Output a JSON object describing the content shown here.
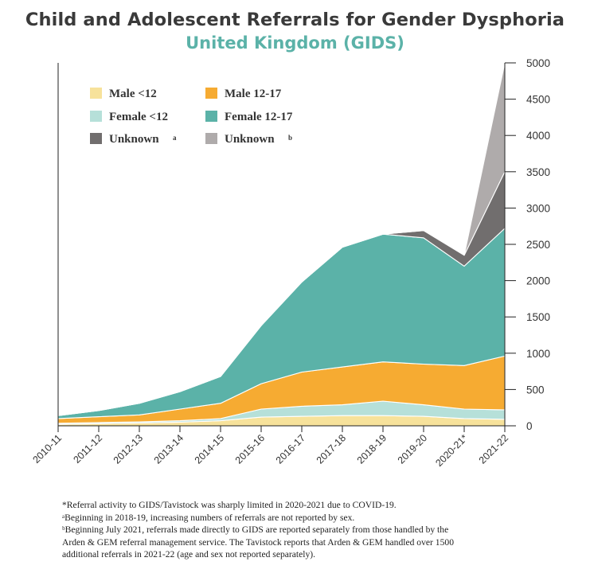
{
  "title": "Child and Adolescent Referrals for Gender Dysphoria",
  "subtitle": "United Kingdom (GIDS)",
  "chart_data": {
    "type": "area",
    "stacked": true,
    "categories": [
      "2010-11",
      "2011-12",
      "2012-13",
      "2013-14",
      "2014-15",
      "2015-16",
      "2016-17",
      "2017-18",
      "2018-19",
      "2019-20",
      "2020-21*",
      "2021-22"
    ],
    "y_axis_position": "right",
    "ylim": [
      0,
      5000
    ],
    "yticks": [
      0,
      500,
      1000,
      1500,
      2000,
      2500,
      3000,
      3500,
      4000,
      4500,
      5000
    ],
    "grid": false,
    "legend_position": "top-left",
    "series": [
      {
        "name": "Male <12",
        "color": "#f7e29b",
        "values": [
          20,
          30,
          40,
          50,
          70,
          120,
          130,
          140,
          140,
          130,
          100,
          90
        ]
      },
      {
        "name": "Female <12",
        "color": "#b6e0d9",
        "values": [
          15,
          15,
          15,
          20,
          30,
          110,
          140,
          150,
          200,
          160,
          130,
          130
        ]
      },
      {
        "name": "Male 12-17",
        "color": "#f6ab32",
        "values": [
          65,
          80,
          95,
          160,
          210,
          350,
          470,
          520,
          540,
          560,
          600,
          740
        ]
      },
      {
        "name": "Female 12-17",
        "color": "#5bb2a8",
        "values": [
          40,
          85,
          160,
          240,
          370,
          800,
          1240,
          1650,
          1760,
          1740,
          1370,
          1760
        ]
      },
      {
        "name": "Unknown",
        "marker": "a",
        "color": "#716e6e",
        "values": [
          0,
          0,
          0,
          0,
          0,
          0,
          0,
          0,
          0,
          100,
          150,
          780
        ]
      },
      {
        "name": "Unknown",
        "marker": "b",
        "color": "#afabab",
        "values": [
          0,
          0,
          0,
          0,
          0,
          0,
          0,
          0,
          0,
          0,
          0,
          1500
        ]
      }
    ]
  },
  "footnotes": [
    "*Referral activity to GIDS/Tavistock was sharply limited in 2020-2021 due to COVID-19.",
    "ᵃBeginning in 2018-19, increasing numbers of referrals are not reported by sex.",
    "ᵇBeginning July 2021, referrals made directly to GIDS are reported separately from those handled by the Arden & GEM referral management service. The Tavistock reports that Arden & GEM handled over 1500 additional referrals in 2021-22 (age and sex not reported separately)."
  ]
}
